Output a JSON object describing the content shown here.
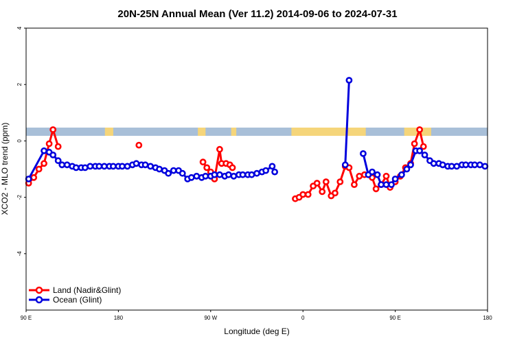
{
  "colors": {
    "land": "#ff0000",
    "ocean": "#0000dd",
    "band_ocean": "#a8bfd8",
    "band_land": "#f5d57a"
  },
  "chart_data": {
    "type": "line",
    "title": "20N-25N Annual Mean (Ver 11.2)   2014-09-06 to 2024-07-31",
    "xlabel": "Longitude (deg E)",
    "ylabel": "XCO2 - MLO trend (ppm)",
    "xlim": [
      90,
      450
    ],
    "ylim": [
      -6,
      4
    ],
    "x_ticks": [
      {
        "value": 90,
        "label": "90 E"
      },
      {
        "value": 162,
        "label": "180"
      },
      {
        "value": 234,
        "label": "90 W"
      },
      {
        "value": 306,
        "label": "0"
      },
      {
        "value": 378,
        "label": "90 E"
      },
      {
        "value": 450,
        "label": "180"
      }
    ],
    "y_ticks": [
      {
        "value": 4,
        "label": "4"
      },
      {
        "value": 2,
        "label": "2"
      },
      {
        "value": 0,
        "label": "0"
      },
      {
        "value": -2,
        "label": "-2"
      },
      {
        "value": -4,
        "label": "-4"
      }
    ],
    "land_band_x": [
      [
        151.5,
        158
      ],
      [
        224,
        230
      ],
      [
        250,
        254
      ],
      [
        297,
        355
      ],
      [
        385,
        406
      ]
    ],
    "series": [
      {
        "name": "Land (Nadir&Glint)",
        "color_key": "land",
        "segments": [
          [
            [
              92,
              -1.5
            ],
            [
              96,
              -1.3
            ],
            [
              100,
              -1.0
            ],
            [
              104,
              -0.8
            ],
            [
              108,
              -0.1
            ],
            [
              111,
              0.4
            ],
            [
              115,
              -0.2
            ]
          ],
          [
            [
              178,
              -0.15
            ]
          ],
          [
            [
              228,
              -0.75
            ],
            [
              231,
              -0.95
            ],
            [
              234,
              -1.1
            ],
            [
              237,
              -1.35
            ],
            [
              241,
              -0.3
            ],
            [
              242.5,
              -0.8
            ],
            [
              246,
              -0.8
            ],
            [
              249,
              -0.85
            ],
            [
              251,
              -0.95
            ]
          ],
          [
            [
              300,
              -2.05
            ],
            [
              303,
              -2.0
            ],
            [
              306,
              -1.9
            ],
            [
              310,
              -1.9
            ],
            [
              314,
              -1.6
            ],
            [
              317,
              -1.5
            ],
            [
              321,
              -1.8
            ],
            [
              324,
              -1.45
            ],
            [
              328,
              -1.95
            ],
            [
              331,
              -1.85
            ],
            [
              335,
              -1.45
            ],
            [
              339,
              -0.9
            ],
            [
              342,
              -0.95
            ],
            [
              346,
              -1.55
            ],
            [
              350,
              -1.25
            ],
            [
              354,
              -1.2
            ],
            [
              360,
              -1.3
            ],
            [
              363,
              -1.7
            ],
            [
              367,
              -1.55
            ],
            [
              371,
              -1.25
            ],
            [
              374,
              -1.65
            ],
            [
              378,
              -1.45
            ],
            [
              382,
              -1.25
            ],
            [
              386,
              -0.95
            ],
            [
              390,
              -0.8
            ],
            [
              393,
              -0.1
            ],
            [
              397,
              0.4
            ],
            [
              400,
              -0.2
            ]
          ]
        ]
      },
      {
        "name": "Ocean (Glint)",
        "color_key": "ocean",
        "segments": [
          [
            [
              92,
              -1.35
            ],
            [
              104,
              -0.35
            ],
            [
              108,
              -0.4
            ],
            [
              111,
              -0.5
            ],
            [
              115,
              -0.7
            ],
            [
              118,
              -0.85
            ],
            [
              122,
              -0.85
            ],
            [
              126,
              -0.9
            ],
            [
              129,
              -0.95
            ],
            [
              133,
              -0.95
            ],
            [
              136,
              -0.95
            ],
            [
              140,
              -0.9
            ],
            [
              144,
              -0.9
            ],
            [
              147,
              -0.9
            ],
            [
              151,
              -0.9
            ],
            [
              155,
              -0.9
            ],
            [
              158,
              -0.9
            ],
            [
              162,
              -0.9
            ],
            [
              165,
              -0.9
            ],
            [
              169,
              -0.9
            ],
            [
              173,
              -0.85
            ],
            [
              176,
              -0.8
            ],
            [
              180,
              -0.85
            ],
            [
              183,
              -0.85
            ],
            [
              187,
              -0.9
            ],
            [
              191,
              -0.95
            ],
            [
              194,
              -1.0
            ],
            [
              198,
              -1.05
            ],
            [
              201,
              -1.15
            ],
            [
              205,
              -1.05
            ],
            [
              209,
              -1.05
            ],
            [
              212,
              -1.15
            ],
            [
              216,
              -1.35
            ],
            [
              219,
              -1.3
            ],
            [
              223,
              -1.25
            ],
            [
              227,
              -1.3
            ],
            [
              230,
              -1.25
            ],
            [
              234,
              -1.25
            ],
            [
              237,
              -1.2
            ],
            [
              241,
              -1.2
            ],
            [
              245,
              -1.25
            ],
            [
              248,
              -1.2
            ],
            [
              252,
              -1.25
            ],
            [
              256,
              -1.2
            ],
            [
              259,
              -1.2
            ],
            [
              263,
              -1.2
            ],
            [
              266,
              -1.2
            ],
            [
              270,
              -1.15
            ],
            [
              274,
              -1.1
            ],
            [
              277,
              -1.05
            ],
            [
              282,
              -0.9
            ],
            [
              284,
              -1.1
            ]
          ],
          [
            [
              339,
              -0.85
            ],
            [
              342,
              2.15
            ]
          ],
          [
            [
              353,
              -0.45
            ],
            [
              357,
              -1.2
            ],
            [
              360,
              -1.1
            ],
            [
              364,
              -1.2
            ],
            [
              367,
              -1.55
            ],
            [
              371,
              -1.55
            ],
            [
              375,
              -1.55
            ],
            [
              378,
              -1.35
            ],
            [
              383,
              -1.2
            ],
            [
              387,
              -1.0
            ],
            [
              390,
              -0.85
            ],
            [
              394,
              -0.35
            ],
            [
              397,
              -0.35
            ],
            [
              401,
              -0.5
            ],
            [
              405,
              -0.7
            ],
            [
              408,
              -0.8
            ],
            [
              412,
              -0.8
            ],
            [
              415,
              -0.85
            ],
            [
              419,
              -0.9
            ],
            [
              422,
              -0.9
            ],
            [
              426,
              -0.9
            ],
            [
              430,
              -0.85
            ],
            [
              433,
              -0.85
            ],
            [
              437,
              -0.85
            ],
            [
              440,
              -0.85
            ],
            [
              444,
              -0.85
            ],
            [
              448,
              -0.9
            ]
          ]
        ]
      }
    ],
    "legend": {
      "position": "bottom-left",
      "entries": [
        {
          "label": "Land (Nadir&Glint)",
          "color_key": "land"
        },
        {
          "label": "Ocean (Glint)",
          "color_key": "ocean"
        }
      ]
    }
  }
}
